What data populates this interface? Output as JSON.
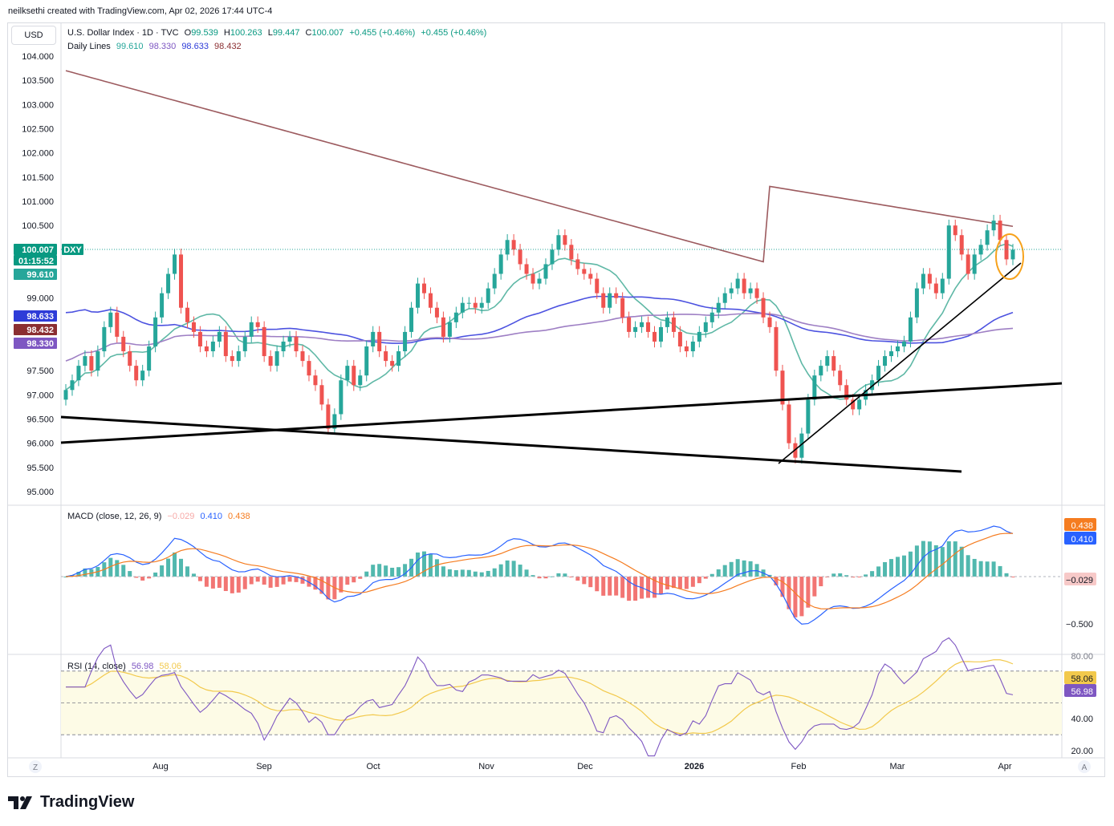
{
  "credit": "neilksethi created with TradingView.com, Apr 02, 2026 17:44 UTC-4",
  "currency": "USD",
  "header": {
    "symbol": "U.S. Dollar Index · 1D · TVC",
    "o_label": "O",
    "o_value": "99.539",
    "h_label": "H",
    "h_value": "100.263",
    "l_label": "L",
    "l_value": "99.447",
    "c_label": "C",
    "c_value": "100.007",
    "change": "+0.455 (+0.46%)",
    "change2": "+0.455 (+0.46%)",
    "lines_label": "Daily Lines",
    "lines_values": [
      "99.610",
      "98.330",
      "98.633",
      "98.432"
    ]
  },
  "macd_legend": {
    "label": "MACD (close, 12, 26, 9)",
    "hist": "−0.029",
    "macd": "0.410",
    "signal": "0.438"
  },
  "rsi_legend": {
    "label": "RSI (14, close)",
    "rsi": "56.98",
    "ma": "58.06"
  },
  "brand": "TradingView",
  "colors": {
    "up": "#26a69a",
    "down": "#ef5350",
    "ma20": "#5fb8a6",
    "ma50": "#4c52e0",
    "ma100": "#9e7fc4",
    "ma200": "#9c5a5e",
    "macd": "#2962ff",
    "signal": "#f57c20",
    "rsi": "#7e57c2",
    "rsi_ma": "#f2c94c"
  },
  "chart_data": {
    "type": "candlestick",
    "price_axis": {
      "ticks": [
        "104.000",
        "103.500",
        "103.000",
        "102.500",
        "102.000",
        "101.500",
        "101.000",
        "100.500",
        "99.000",
        "97.500",
        "97.000",
        "96.500",
        "96.000",
        "95.500",
        "95.000"
      ],
      "ylim": [
        94.8,
        104.3
      ]
    },
    "time_axis": {
      "labels": [
        "Aug",
        "Sep",
        "Oct",
        "Nov",
        "Dec",
        "2026",
        "Feb",
        "Mar",
        "Apr"
      ],
      "left_button": "Z",
      "right_button": "A"
    },
    "price_labels": {
      "last": "100.007",
      "symbol": "DXY",
      "countdown": "01:15:52",
      "ma20": "99.610",
      "ma50": "98.633",
      "ma200": "98.432",
      "ma100": "98.330"
    },
    "ohlc_close_approx": [
      97.1,
      97.3,
      97.6,
      97.8,
      97.5,
      97.9,
      98.4,
      98.7,
      98.2,
      97.9,
      97.6,
      97.3,
      97.5,
      98.0,
      98.6,
      99.1,
      99.5,
      99.9,
      98.8,
      98.5,
      98.3,
      98.0,
      97.9,
      98.1,
      98.3,
      97.8,
      97.7,
      97.9,
      98.2,
      98.5,
      98.4,
      97.8,
      97.6,
      97.9,
      98.1,
      98.2,
      97.9,
      97.7,
      97.4,
      97.2,
      96.8,
      96.3,
      96.6,
      97.3,
      97.6,
      97.2,
      97.4,
      98.0,
      98.3,
      97.9,
      97.7,
      97.6,
      97.9,
      98.3,
      98.8,
      99.3,
      99.1,
      98.8,
      98.6,
      98.2,
      98.5,
      98.7,
      98.9,
      98.9,
      98.8,
      98.9,
      99.2,
      99.5,
      99.9,
      100.2,
      100.0,
      99.7,
      99.5,
      99.3,
      99.4,
      99.7,
      100.0,
      100.3,
      100.1,
      99.8,
      99.6,
      99.5,
      99.4,
      99.1,
      98.8,
      99.1,
      99.0,
      98.6,
      98.3,
      98.4,
      98.5,
      98.3,
      98.1,
      98.4,
      98.6,
      98.3,
      98.0,
      97.9,
      98.1,
      98.3,
      98.5,
      98.7,
      98.9,
      99.1,
      99.2,
      99.4,
      99.1,
      99.2,
      99.0,
      98.6,
      98.4,
      97.5,
      96.8,
      96.0,
      95.7,
      96.2,
      96.9,
      97.4,
      97.6,
      97.8,
      97.5,
      97.2,
      96.9,
      96.7,
      96.9,
      97.1,
      97.3,
      97.6,
      97.8,
      97.9,
      98.0,
      98.1,
      98.6,
      99.2,
      99.5,
      99.3,
      99.1,
      99.4,
      100.5,
      100.3,
      99.9,
      99.5,
      99.9,
      100.1,
      100.4,
      100.6,
      100.2,
      99.8,
      100.0
    ],
    "macd_axis": {
      "ticks": [
        "0.438",
        "0.410",
        "−0.029",
        "−0.500"
      ]
    },
    "rsi_axis": {
      "ticks": [
        "80.00",
        "58.06",
        "56.98",
        "40.00",
        "20.00"
      ]
    }
  }
}
